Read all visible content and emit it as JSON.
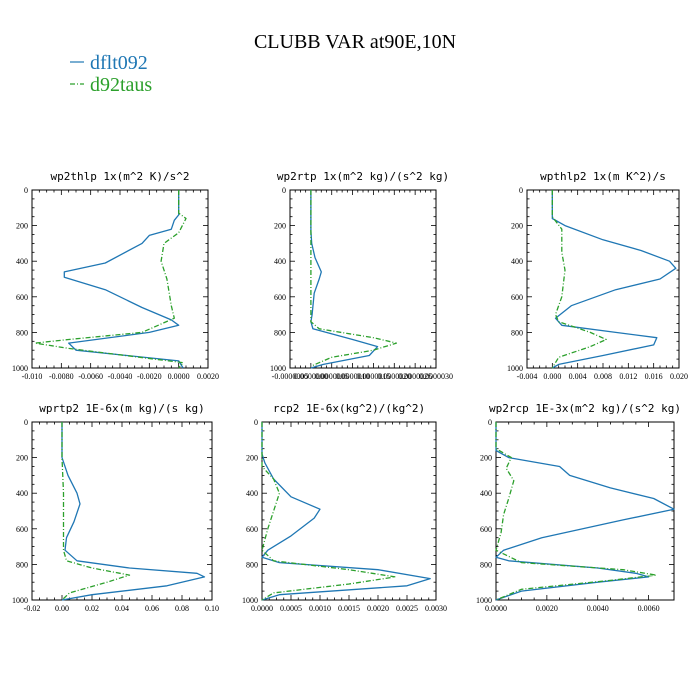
{
  "title": "CLUBB VAR at90E,10N",
  "legend": [
    {
      "name": "dflt092",
      "color": "#1f77b4",
      "dash": "solid"
    },
    {
      "name": "d92taus",
      "color": "#2ca02c",
      "dash": "dashdot"
    }
  ],
  "chart_data": [
    {
      "type": "line",
      "title": "wp2thlp  1x(m^2 K)/s^2",
      "xlim": [
        -0.01,
        0.002
      ],
      "ylim": [
        1000,
        0
      ],
      "xticks": [
        -0.01,
        -0.008,
        -0.006,
        -0.004,
        -0.002,
        0.0,
        0.002
      ],
      "xticklabels": [
        "-0.010",
        "-0.0080",
        "-0.0060",
        "-0.0040",
        "-0.0020",
        "0.0000",
        "0.0020"
      ],
      "yticks": [
        0,
        200,
        400,
        600,
        800,
        1000
      ],
      "yticklabels": [
        "0",
        "200",
        "400",
        "600",
        "800",
        "1000"
      ],
      "series": [
        {
          "name": "dflt092",
          "points": [
            [
              0.0,
              0
            ],
            [
              0.0,
              140
            ],
            [
              -0.0003,
              170
            ],
            [
              -0.0005,
              220
            ],
            [
              -0.002,
              255
            ],
            [
              -0.0025,
              300
            ],
            [
              -0.005,
              410
            ],
            [
              -0.0078,
              460
            ],
            [
              -0.0078,
              490
            ],
            [
              -0.005,
              560
            ],
            [
              -0.0025,
              660
            ],
            [
              -0.0005,
              730
            ],
            [
              0.0,
              760
            ],
            [
              -0.002,
              800
            ],
            [
              -0.0075,
              860
            ],
            [
              -0.007,
              900
            ],
            [
              0.0,
              960
            ],
            [
              0.0003,
              1000
            ]
          ]
        },
        {
          "name": "d92taus",
          "points": [
            [
              0.0,
              0
            ],
            [
              0.0,
              130
            ],
            [
              0.0005,
              160
            ],
            [
              0.0,
              240
            ],
            [
              -0.001,
              300
            ],
            [
              -0.0012,
              400
            ],
            [
              -0.0008,
              500
            ],
            [
              -0.0005,
              650
            ],
            [
              -0.0003,
              720
            ],
            [
              -0.0025,
              800
            ],
            [
              -0.0075,
              840
            ],
            [
              -0.0098,
              860
            ],
            [
              -0.0075,
              890
            ],
            [
              0.0003,
              970
            ],
            [
              0.0,
              1000
            ]
          ]
        }
      ]
    },
    {
      "type": "line",
      "title": "wp2rtp  1x(m^2 kg)/(s^2 kg)",
      "xlim": [
        -5e-07,
        3e-06
      ],
      "ylim": [
        1000,
        0
      ],
      "xticks": [
        -5e-07,
        0,
        5e-07,
        1e-06,
        1.5e-06,
        2e-06,
        2.5e-06,
        3e-06
      ],
      "xticklabels": [
        "-0.0000005",
        "0.0000000",
        "0.0000005",
        "0.0000010",
        "0.0000015",
        "0.0000020",
        "0.0000025",
        "0.0000030"
      ],
      "yticks": [
        0,
        200,
        400,
        600,
        800,
        1000
      ],
      "yticklabels": [
        "0",
        "200",
        "400",
        "600",
        "800",
        "1000"
      ],
      "series": [
        {
          "name": "dflt092",
          "points": [
            [
              0,
              0
            ],
            [
              0,
              230
            ],
            [
              2e-08,
              300
            ],
            [
              1e-07,
              380
            ],
            [
              2.5e-07,
              460
            ],
            [
              2e-07,
              500
            ],
            [
              8e-08,
              580
            ],
            [
              3e-08,
              700
            ],
            [
              0,
              740
            ],
            [
              5e-08,
              780
            ],
            [
              1e-06,
              840
            ],
            [
              1.6e-06,
              880
            ],
            [
              1.4e-06,
              930
            ],
            [
              3e-07,
              980
            ],
            [
              0,
              1000
            ]
          ]
        },
        {
          "name": "d92taus",
          "points": [
            [
              0,
              0
            ],
            [
              0,
              700
            ],
            [
              0,
              740
            ],
            [
              2e-07,
              780
            ],
            [
              1.5e-06,
              830
            ],
            [
              2.05e-06,
              860
            ],
            [
              1.5e-06,
              900
            ],
            [
              5e-07,
              940
            ],
            [
              0,
              990
            ]
          ]
        }
      ]
    },
    {
      "type": "line",
      "title": "wpthlp2  1x(m K^2)/s",
      "xlim": [
        -0.004,
        0.02
      ],
      "ylim": [
        1000,
        0
      ],
      "xticks": [
        -0.004,
        0.0,
        0.004,
        0.008,
        0.012,
        0.016,
        0.02
      ],
      "xticklabels": [
        "-0.004",
        "0.000",
        "0.004",
        "0.008",
        "0.012",
        "0.016",
        "0.020"
      ],
      "yticks": [
        0,
        200,
        400,
        600,
        800,
        1000
      ],
      "yticklabels": [
        "0",
        "200",
        "400",
        "600",
        "800",
        "1000"
      ],
      "series": [
        {
          "name": "dflt092",
          "points": [
            [
              0.0,
              0
            ],
            [
              0.0,
              160
            ],
            [
              0.002,
              200
            ],
            [
              0.008,
              280
            ],
            [
              0.014,
              340
            ],
            [
              0.0185,
              400
            ],
            [
              0.0195,
              440
            ],
            [
              0.017,
              500
            ],
            [
              0.01,
              560
            ],
            [
              0.003,
              650
            ],
            [
              0.0005,
              720
            ],
            [
              0.0015,
              760
            ],
            [
              0.01,
              800
            ],
            [
              0.0165,
              830
            ],
            [
              0.016,
              870
            ],
            [
              0.008,
              930
            ],
            [
              0.001,
              980
            ],
            [
              0.0,
              1000
            ]
          ]
        },
        {
          "name": "d92taus",
          "points": [
            [
              0.0,
              0
            ],
            [
              0.0,
              150
            ],
            [
              0.0015,
              220
            ],
            [
              0.0015,
              350
            ],
            [
              0.002,
              450
            ],
            [
              0.0015,
              600
            ],
            [
              0.0005,
              700
            ],
            [
              0.001,
              740
            ],
            [
              0.006,
              800
            ],
            [
              0.0085,
              840
            ],
            [
              0.006,
              880
            ],
            [
              0.001,
              940
            ],
            [
              0.0,
              1000
            ]
          ]
        }
      ]
    },
    {
      "type": "line",
      "title": "wprtp2  1E-6x(m kg)/(s kg)",
      "xlim": [
        -0.02,
        0.1
      ],
      "ylim": [
        1000,
        0
      ],
      "xticks": [
        -0.02,
        0.0,
        0.02,
        0.04,
        0.06,
        0.08,
        0.1
      ],
      "xticklabels": [
        "-0.02",
        "0.00",
        "0.02",
        "0.04",
        "0.06",
        "0.08",
        "0.10"
      ],
      "yticks": [
        0,
        200,
        400,
        600,
        800,
        1000
      ],
      "yticklabels": [
        "0",
        "200",
        "400",
        "600",
        "800",
        "1000"
      ],
      "series": [
        {
          "name": "dflt092",
          "points": [
            [
              0.0,
              0
            ],
            [
              0.0,
              200
            ],
            [
              0.004,
              300
            ],
            [
              0.01,
              400
            ],
            [
              0.012,
              460
            ],
            [
              0.008,
              560
            ],
            [
              0.003,
              650
            ],
            [
              0.002,
              720
            ],
            [
              0.01,
              780
            ],
            [
              0.045,
              820
            ],
            [
              0.09,
              850
            ],
            [
              0.095,
              870
            ],
            [
              0.07,
              920
            ],
            [
              0.02,
              970
            ],
            [
              0.0,
              1000
            ]
          ]
        },
        {
          "name": "d92taus",
          "points": [
            [
              0.0,
              0
            ],
            [
              0.0,
              200
            ],
            [
              0.001,
              400
            ],
            [
              0.001,
              600
            ],
            [
              0.001,
              720
            ],
            [
              0.003,
              780
            ],
            [
              0.02,
              820
            ],
            [
              0.045,
              860
            ],
            [
              0.03,
              900
            ],
            [
              0.005,
              960
            ],
            [
              0.0,
              1000
            ]
          ]
        }
      ]
    },
    {
      "type": "line",
      "title": "rcp2  1E-6x(kg^2)/(kg^2)",
      "xlim": [
        0,
        0.003
      ],
      "ylim": [
        1000,
        0
      ],
      "xticks": [
        0,
        0.0005,
        0.001,
        0.0015,
        0.002,
        0.0025,
        0.003
      ],
      "xticklabels": [
        "0.0000",
        "0.0005",
        "0.0010",
        "0.0015",
        "0.0020",
        "0.0025",
        "0.0030"
      ],
      "yticks": [
        0,
        200,
        400,
        600,
        800,
        1000
      ],
      "yticklabels": [
        "0",
        "200",
        "400",
        "600",
        "800",
        "1000"
      ],
      "series": [
        {
          "name": "dflt092",
          "points": [
            [
              0,
              0
            ],
            [
              0,
              180
            ],
            [
              5e-05,
              230
            ],
            [
              0.0002,
              320
            ],
            [
              0.0005,
              420
            ],
            [
              0.001,
              490
            ],
            [
              0.0009,
              540
            ],
            [
              0.0005,
              640
            ],
            [
              0.0001,
              720
            ],
            [
              0,
              760
            ],
            [
              0.0003,
              790
            ],
            [
              0.002,
              830
            ],
            [
              0.0029,
              880
            ],
            [
              0.0025,
              920
            ],
            [
              0.0003,
              970
            ],
            [
              0,
              1000
            ]
          ]
        },
        {
          "name": "d92taus",
          "points": [
            [
              0,
              0
            ],
            [
              0,
              250
            ],
            [
              0.0002,
              320
            ],
            [
              0.0003,
              400
            ],
            [
              0.0002,
              500
            ],
            [
              0.0001,
              600
            ],
            [
              0,
              720
            ],
            [
              0.0002,
              780
            ],
            [
              0.0015,
              830
            ],
            [
              0.0023,
              870
            ],
            [
              0.0015,
              910
            ],
            [
              0.0002,
              960
            ],
            [
              0,
              1000
            ]
          ]
        }
      ]
    },
    {
      "type": "line",
      "title": "wp2rcp  1E-3x(m^2 kg)/(s^2 kg)",
      "xlim": [
        0,
        0.007
      ],
      "ylim": [
        1000,
        0
      ],
      "xticks": [
        0.0,
        0.002,
        0.004,
        0.006
      ],
      "xticklabels": [
        "0.0000",
        "0.0020",
        "0.0040",
        "0.0060"
      ],
      "yticks": [
        0,
        200,
        400,
        600,
        800,
        1000
      ],
      "yticklabels": [
        "0",
        "200",
        "400",
        "600",
        "800",
        "1000"
      ],
      "series": [
        {
          "name": "dflt092",
          "points": [
            [
              0.0,
              0
            ],
            [
              0.0,
              160
            ],
            [
              0.0005,
              200
            ],
            [
              0.0025,
              250
            ],
            [
              0.0029,
              300
            ],
            [
              0.0045,
              370
            ],
            [
              0.0062,
              430
            ],
            [
              0.007,
              490
            ],
            [
              0.005,
              550
            ],
            [
              0.0018,
              650
            ],
            [
              0.0003,
              720
            ],
            [
              0.0,
              760
            ],
            [
              0.0005,
              780
            ],
            [
              0.004,
              820
            ],
            [
              0.0055,
              850
            ],
            [
              0.006,
              870
            ],
            [
              0.004,
              900
            ],
            [
              0.001,
              950
            ],
            [
              0.0,
              1000
            ]
          ]
        },
        {
          "name": "d92taus",
          "points": [
            [
              0.0,
              0
            ],
            [
              0.0,
              150
            ],
            [
              0.0006,
              200
            ],
            [
              0.0004,
              260
            ],
            [
              0.0007,
              330
            ],
            [
              0.0005,
              430
            ],
            [
              0.0003,
              520
            ],
            [
              0.0002,
              620
            ],
            [
              0.0,
              720
            ],
            [
              0.001,
              790
            ],
            [
              0.005,
              830
            ],
            [
              0.0063,
              860
            ],
            [
              0.0045,
              890
            ],
            [
              0.001,
              940
            ],
            [
              0.0,
              1000
            ]
          ]
        }
      ]
    }
  ]
}
